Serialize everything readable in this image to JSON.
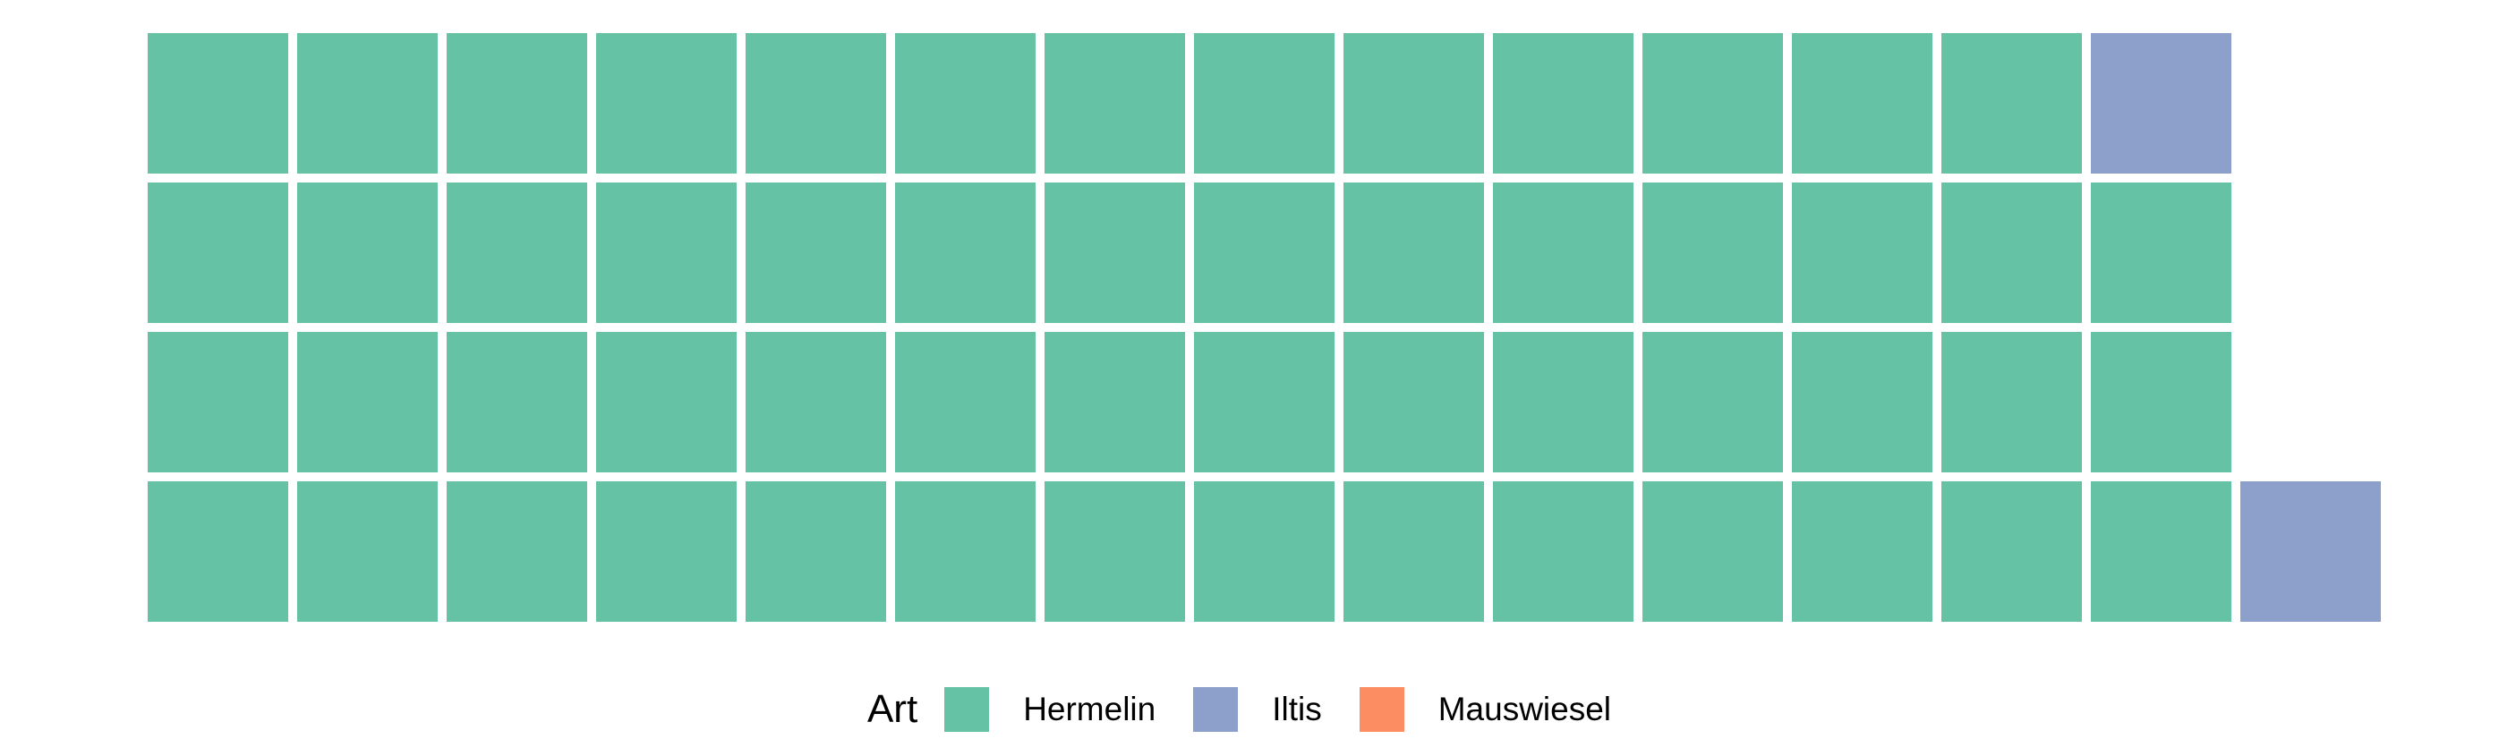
{
  "chart_data": {
    "type": "waffle",
    "legend_title": "Art",
    "legend_position": "bottom",
    "categories": [
      {
        "name": "Hermelin",
        "count": 55,
        "color": "#66c2a5"
      },
      {
        "name": "Iltis",
        "count": 2,
        "color": "#8da0cb"
      },
      {
        "name": "Mauswiesel",
        "count": 0,
        "color": "#fc8d62"
      }
    ],
    "grid": {
      "rows": 4,
      "columns": 15
    },
    "cells": [
      [
        "Hermelin",
        "Hermelin",
        "Hermelin",
        "Hermelin",
        "Hermelin",
        "Hermelin",
        "Hermelin",
        "Hermelin",
        "Hermelin",
        "Hermelin",
        "Hermelin",
        "Hermelin",
        "Hermelin",
        "Iltis",
        null
      ],
      [
        "Hermelin",
        "Hermelin",
        "Hermelin",
        "Hermelin",
        "Hermelin",
        "Hermelin",
        "Hermelin",
        "Hermelin",
        "Hermelin",
        "Hermelin",
        "Hermelin",
        "Hermelin",
        "Hermelin",
        "Hermelin",
        null
      ],
      [
        "Hermelin",
        "Hermelin",
        "Hermelin",
        "Hermelin",
        "Hermelin",
        "Hermelin",
        "Hermelin",
        "Hermelin",
        "Hermelin",
        "Hermelin",
        "Hermelin",
        "Hermelin",
        "Hermelin",
        "Hermelin",
        null
      ],
      [
        "Hermelin",
        "Hermelin",
        "Hermelin",
        "Hermelin",
        "Hermelin",
        "Hermelin",
        "Hermelin",
        "Hermelin",
        "Hermelin",
        "Hermelin",
        "Hermelin",
        "Hermelin",
        "Hermelin",
        "Hermelin",
        "Iltis"
      ]
    ]
  }
}
